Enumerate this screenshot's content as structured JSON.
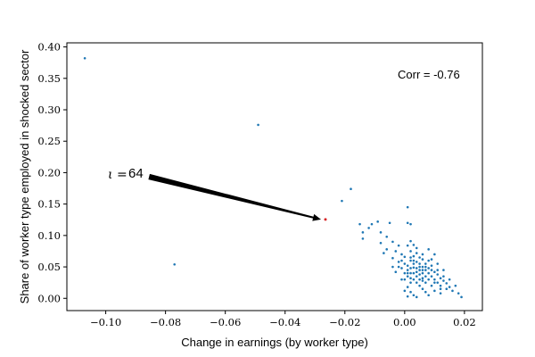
{
  "chart_data": {
    "type": "scatter",
    "title": "",
    "xlabel": "Change in earnings (by worker type)",
    "ylabel": "Share of worker type employed in shocked sector",
    "xlim": [
      -0.113,
      0.026
    ],
    "ylim": [
      -0.0195,
      0.4065
    ],
    "xticks": [
      -0.1,
      -0.08,
      -0.06,
      -0.04,
      -0.02,
      0.0,
      0.02
    ],
    "xtick_labels": [
      "−0.10",
      "−0.08",
      "−0.06",
      "−0.04",
      "−0.02",
      "0.00",
      "0.02"
    ],
    "yticks": [
      0.0,
      0.05,
      0.1,
      0.15,
      0.2,
      0.25,
      0.3,
      0.35,
      0.4
    ],
    "ytick_labels": [
      "0.00",
      "0.05",
      "0.10",
      "0.15",
      "0.20",
      "0.25",
      "0.30",
      "0.35",
      "0.40"
    ],
    "grid": false,
    "corr_text": "Corr = -0.76",
    "annotation": {
      "symbol": "ι",
      "equals": "=",
      "value": "64",
      "text_at": [
        -0.0855,
        0.1935
      ],
      "points_to": [
        -0.0265,
        0.1255
      ]
    },
    "highlight": {
      "x": -0.0265,
      "y": 0.1255,
      "color": "#d62728"
    },
    "point_color": "#1f77b4",
    "points": [
      [
        -0.107,
        0.382
      ],
      [
        -0.049,
        0.276
      ],
      [
        -0.077,
        0.054
      ],
      [
        -0.018,
        0.174
      ],
      [
        -0.021,
        0.155
      ],
      [
        -0.015,
        0.118
      ],
      [
        -0.014,
        0.095
      ],
      [
        -0.014,
        0.105
      ],
      [
        -0.012,
        0.112
      ],
      [
        -0.011,
        0.118
      ],
      [
        -0.009,
        0.122
      ],
      [
        -0.008,
        0.105
      ],
      [
        -0.008,
        0.088
      ],
      [
        -0.007,
        0.072
      ],
      [
        -0.006,
        0.098
      ],
      [
        -0.005,
        0.12
      ],
      [
        -0.006,
        0.078
      ],
      [
        -0.004,
        0.064
      ],
      [
        -0.003,
        0.075
      ],
      [
        -0.004,
        0.05
      ],
      [
        -0.002,
        0.058
      ],
      [
        -0.003,
        0.042
      ],
      [
        -0.001,
        0.07
      ],
      [
        0.0,
        0.066
      ],
      [
        0.001,
        0.145
      ],
      [
        0.001,
        0.12
      ],
      [
        0.002,
        0.118
      ],
      [
        0.002,
        0.091
      ],
      [
        0.001,
        0.084
      ],
      [
        0.002,
        0.075
      ],
      [
        0.0,
        0.055
      ],
      [
        0.001,
        0.045
      ],
      [
        0.002,
        0.06
      ],
      [
        -0.001,
        0.048
      ],
      [
        0.0,
        0.04
      ],
      [
        0.001,
        0.035
      ],
      [
        0.003,
        0.085
      ],
      [
        0.003,
        0.067
      ],
      [
        0.004,
        0.072
      ],
      [
        0.004,
        0.058
      ],
      [
        0.003,
        0.049
      ],
      [
        0.005,
        0.065
      ],
      [
        0.005,
        0.055
      ],
      [
        0.004,
        0.042
      ],
      [
        0.006,
        0.05
      ],
      [
        0.006,
        0.062
      ],
      [
        0.005,
        0.038
      ],
      [
        0.007,
        0.045
      ],
      [
        0.007,
        0.055
      ],
      [
        0.006,
        0.032
      ],
      [
        0.008,
        0.04
      ],
      [
        0.008,
        0.048
      ],
      [
        0.009,
        0.035
      ],
      [
        0.009,
        0.052
      ],
      [
        0.01,
        0.03
      ],
      [
        0.01,
        0.042
      ],
      [
        0.011,
        0.025
      ],
      [
        0.011,
        0.038
      ],
      [
        0.012,
        0.02
      ],
      [
        0.012,
        0.032
      ],
      [
        0.013,
        0.028
      ],
      [
        0.014,
        0.015
      ],
      [
        0.014,
        0.024
      ],
      [
        0.015,
        0.018
      ],
      [
        0.016,
        0.012
      ],
      [
        0.017,
        0.02
      ],
      [
        0.018,
        0.008
      ],
      [
        0.019,
        0.002
      ],
      [
        0.008,
        0.078
      ],
      [
        0.01,
        0.07
      ],
      [
        0.009,
        0.062
      ],
      [
        0.011,
        0.055
      ],
      [
        0.013,
        0.045
      ],
      [
        0.003,
        0.03
      ],
      [
        0.004,
        0.025
      ],
      [
        0.005,
        0.02
      ],
      [
        0.006,
        0.015
      ],
      [
        0.007,
        0.01
      ],
      [
        0.002,
        0.01
      ],
      [
        0.003,
        0.005
      ],
      [
        0.001,
        0.003
      ],
      [
        0.004,
        0.002
      ],
      [
        0.008,
        0.005
      ],
      [
        0.01,
        0.012
      ],
      [
        0.012,
        0.008
      ],
      [
        0.005,
        0.03
      ],
      [
        0.007,
        0.025
      ],
      [
        0.009,
        0.02
      ],
      [
        0.002,
        0.025
      ],
      [
        0.001,
        0.018
      ],
      [
        0.0,
        0.012
      ],
      [
        -0.001,
        0.06
      ],
      [
        -0.002,
        0.05
      ],
      [
        0.002,
        0.04
      ],
      [
        0.004,
        0.035
      ],
      [
        0.006,
        0.04
      ],
      [
        0.008,
        0.03
      ],
      [
        0.003,
        0.055
      ],
      [
        0.005,
        0.045
      ],
      [
        0.007,
        0.035
      ],
      [
        0.002,
        0.048
      ],
      [
        0.004,
        0.048
      ],
      [
        0.006,
        0.045
      ],
      [
        0.008,
        0.06
      ],
      [
        0.001,
        0.052
      ],
      [
        0.003,
        0.06
      ],
      [
        0.0,
        0.03
      ],
      [
        0.002,
        0.032
      ],
      [
        0.006,
        0.028
      ],
      [
        0.009,
        0.045
      ],
      [
        0.011,
        0.045
      ],
      [
        0.013,
        0.035
      ],
      [
        0.015,
        0.03
      ],
      [
        0.01,
        0.025
      ],
      [
        0.012,
        0.015
      ],
      [
        -0.004,
        0.09
      ],
      [
        -0.002,
        0.084
      ],
      [
        0.004,
        0.08
      ],
      [
        0.006,
        0.07
      ],
      [
        0.003,
        0.04
      ],
      [
        0.005,
        0.05
      ],
      [
        0.007,
        0.05
      ],
      [
        0.001,
        0.04
      ],
      [
        0.002,
        0.065
      ],
      [
        -0.001,
        0.03
      ]
    ]
  }
}
